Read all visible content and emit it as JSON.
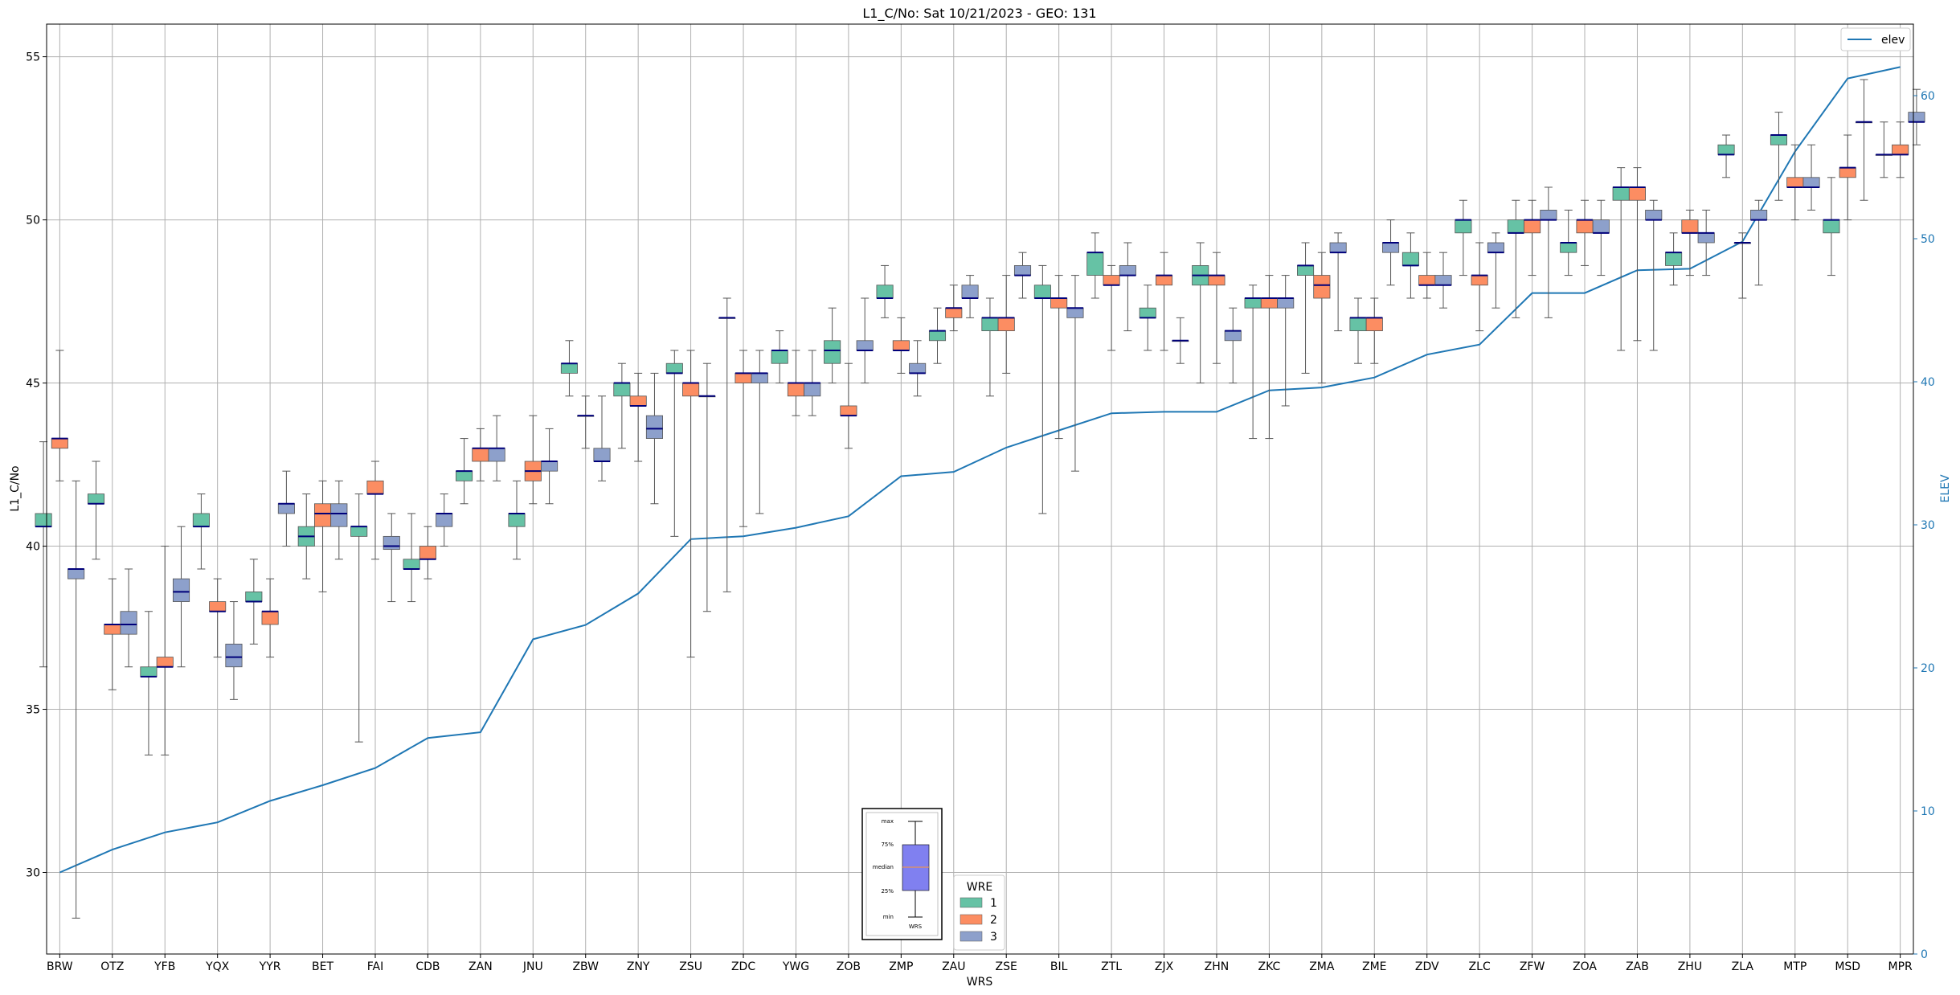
{
  "chart_data": {
    "type": "boxplot",
    "title": "L1_C/No: Sat 10/21/2023 - GEO: 131",
    "xlabel": "WRS",
    "ylabel": "L1_C/No",
    "y2label": "ELEV",
    "ylim": [
      27.5,
      56
    ],
    "y2lim": [
      0,
      65
    ],
    "yticks": [
      30,
      35,
      40,
      45,
      50,
      55
    ],
    "y2ticks": [
      0,
      10,
      20,
      30,
      40,
      50,
      60
    ],
    "grid": true,
    "legend_line": {
      "label": "elev",
      "color": "#1f77b4",
      "placement": "top-right"
    },
    "legend_wre": {
      "title": "WRE",
      "entries": [
        "1",
        "2",
        "3"
      ],
      "colors": [
        "#66c2a5",
        "#fc8d62",
        "#8da0cb"
      ],
      "placement": "bottom-center"
    },
    "key_labels": [
      "max",
      "75%",
      "median",
      "25%",
      "min",
      "WRS"
    ],
    "categories": [
      "BRW",
      "OTZ",
      "YFB",
      "YQX",
      "YYR",
      "BET",
      "FAI",
      "CDB",
      "ZAN",
      "JNU",
      "ZBW",
      "ZNY",
      "ZSU",
      "ZDC",
      "YWG",
      "ZOB",
      "ZMP",
      "ZAU",
      "ZSE",
      "BIL",
      "ZTL",
      "ZJX",
      "ZHN",
      "ZKC",
      "ZMA",
      "ZME",
      "ZDV",
      "ZLC",
      "ZFW",
      "ZOA",
      "ZAB",
      "ZHU",
      "ZLA",
      "MTP",
      "MSD",
      "MPR"
    ],
    "elev": [
      5.7,
      7.3,
      8.5,
      9.2,
      10.7,
      11.8,
      13.0,
      15.1,
      15.5,
      22.0,
      23.0,
      25.2,
      29.0,
      29.2,
      29.8,
      30.6,
      33.4,
      33.7,
      35.4,
      36.6,
      37.8,
      37.9,
      37.9,
      39.4,
      39.6,
      40.3,
      41.9,
      42.6,
      46.2,
      46.2,
      47.8,
      47.9,
      49.8,
      56.1,
      61.2,
      62.0
    ],
    "series": [
      {
        "name": "1",
        "boxes": [
          [
            36.3,
            40.6,
            40.6,
            41.0,
            43.2
          ],
          [
            39.6,
            41.3,
            41.3,
            41.6,
            42.6
          ],
          [
            33.6,
            36.0,
            36.0,
            36.3,
            38.0
          ],
          [
            39.3,
            40.6,
            40.6,
            41.0,
            41.6
          ],
          [
            37.0,
            38.3,
            38.3,
            38.6,
            39.6
          ],
          [
            39.0,
            40.0,
            40.3,
            40.6,
            41.6
          ],
          [
            34.0,
            40.3,
            40.6,
            40.6,
            41.6
          ],
          [
            38.3,
            39.3,
            39.3,
            39.6,
            41.0
          ],
          [
            41.3,
            42.0,
            42.3,
            42.3,
            43.3
          ],
          [
            39.6,
            40.6,
            41.0,
            41.0,
            42.0
          ],
          [
            44.6,
            45.3,
            45.6,
            45.6,
            46.3
          ],
          [
            43.0,
            44.6,
            45.0,
            45.0,
            45.6
          ],
          [
            40.3,
            45.3,
            45.3,
            45.6,
            46.0
          ],
          [
            38.6,
            47.0,
            47.0,
            47.0,
            47.6
          ],
          [
            45.0,
            45.6,
            46.0,
            46.0,
            46.6
          ],
          [
            45.0,
            45.6,
            46.0,
            46.3,
            47.3
          ],
          [
            47.0,
            47.6,
            47.6,
            48.0,
            48.6
          ],
          [
            45.6,
            46.3,
            46.6,
            46.6,
            47.3
          ],
          [
            44.6,
            46.6,
            47.0,
            47.0,
            47.6
          ],
          [
            41.0,
            47.6,
            47.6,
            48.0,
            48.6
          ],
          [
            47.6,
            48.3,
            49.0,
            49.0,
            49.6
          ],
          [
            46.0,
            47.0,
            47.0,
            47.3,
            48.0
          ],
          [
            45.0,
            48.0,
            48.3,
            48.6,
            49.3
          ],
          [
            43.3,
            47.3,
            47.6,
            47.6,
            48.0
          ],
          [
            45.3,
            48.3,
            48.6,
            48.6,
            49.3
          ],
          [
            45.6,
            46.6,
            47.0,
            47.0,
            47.6
          ],
          [
            47.6,
            48.6,
            48.6,
            49.0,
            49.6
          ],
          [
            48.3,
            49.6,
            50.0,
            50.0,
            50.6
          ],
          [
            47.0,
            49.6,
            49.6,
            50.0,
            50.6
          ],
          [
            48.3,
            49.0,
            49.3,
            49.3,
            50.3
          ],
          [
            46.0,
            50.6,
            51.0,
            51.0,
            51.6
          ],
          [
            48.0,
            48.6,
            49.0,
            49.0,
            49.6
          ],
          [
            51.3,
            52.0,
            52.0,
            52.3,
            52.6
          ],
          [
            50.6,
            52.3,
            52.6,
            52.6,
            53.3
          ],
          [
            48.3,
            49.6,
            50.0,
            50.0,
            51.3
          ],
          [
            51.3,
            52.0,
            52.0,
            52.0,
            53.0
          ]
        ]
      },
      {
        "name": "2",
        "boxes": [
          [
            42.0,
            43.0,
            43.3,
            43.3,
            46.0
          ],
          [
            35.6,
            37.3,
            37.6,
            37.6,
            39.0
          ],
          [
            33.6,
            36.3,
            36.3,
            36.6,
            40.0
          ],
          [
            36.6,
            38.0,
            38.0,
            38.3,
            39.0
          ],
          [
            36.6,
            37.6,
            38.0,
            38.0,
            39.0
          ],
          [
            38.6,
            40.6,
            41.0,
            41.3,
            42.0
          ],
          [
            39.6,
            41.6,
            41.6,
            42.0,
            42.6
          ],
          [
            39.0,
            39.6,
            39.6,
            40.0,
            40.6
          ],
          [
            42.0,
            42.6,
            43.0,
            43.0,
            43.6
          ],
          [
            41.3,
            42.0,
            42.3,
            42.6,
            44.0
          ],
          [
            43.0,
            44.0,
            44.0,
            44.0,
            44.6
          ],
          [
            42.6,
            44.3,
            44.3,
            44.6,
            45.3
          ],
          [
            36.6,
            44.6,
            45.0,
            45.0,
            46.0
          ],
          [
            40.6,
            45.0,
            45.3,
            45.3,
            46.0
          ],
          [
            44.0,
            44.6,
            45.0,
            45.0,
            46.0
          ],
          [
            43.0,
            44.0,
            44.0,
            44.3,
            45.6
          ],
          [
            45.3,
            46.0,
            46.0,
            46.3,
            47.0
          ],
          [
            46.6,
            47.0,
            47.3,
            47.3,
            48.0
          ],
          [
            45.3,
            46.6,
            47.0,
            47.0,
            48.3
          ],
          [
            43.3,
            47.3,
            47.6,
            47.6,
            48.3
          ],
          [
            46.0,
            48.0,
            48.0,
            48.3,
            48.6
          ],
          [
            46.0,
            48.0,
            48.3,
            48.3,
            49.0
          ],
          [
            45.6,
            48.0,
            48.3,
            48.3,
            49.0
          ],
          [
            43.3,
            47.3,
            47.6,
            47.6,
            48.3
          ],
          [
            45.0,
            47.6,
            48.0,
            48.3,
            49.0
          ],
          [
            45.6,
            46.6,
            47.0,
            47.0,
            47.6
          ],
          [
            47.6,
            48.0,
            48.0,
            48.3,
            49.0
          ],
          [
            46.6,
            48.0,
            48.3,
            48.3,
            49.3
          ],
          [
            48.3,
            49.6,
            50.0,
            50.0,
            50.6
          ],
          [
            48.6,
            49.6,
            50.0,
            50.0,
            50.6
          ],
          [
            46.3,
            50.6,
            51.0,
            51.0,
            51.6
          ],
          [
            48.3,
            49.6,
            49.6,
            50.0,
            50.3
          ],
          [
            47.6,
            49.3,
            49.3,
            49.3,
            49.6
          ],
          [
            50.0,
            51.0,
            51.0,
            51.3,
            52.3
          ],
          [
            50.0,
            51.3,
            51.6,
            51.6,
            52.6
          ],
          [
            51.3,
            52.0,
            52.0,
            52.3,
            53.0
          ]
        ]
      },
      {
        "name": "3",
        "boxes": [
          [
            28.6,
            39.0,
            39.3,
            39.3,
            42.0
          ],
          [
            36.3,
            37.3,
            37.6,
            38.0,
            39.3
          ],
          [
            36.3,
            38.3,
            38.6,
            39.0,
            40.6
          ],
          [
            35.3,
            36.3,
            36.6,
            37.0,
            38.3
          ],
          [
            40.0,
            41.0,
            41.3,
            41.3,
            42.3
          ],
          [
            39.6,
            40.6,
            41.0,
            41.3,
            42.0
          ],
          [
            38.3,
            39.9,
            40.0,
            40.3,
            41.0
          ],
          [
            40.0,
            40.6,
            41.0,
            41.0,
            41.6
          ],
          [
            42.0,
            42.6,
            43.0,
            43.0,
            44.0
          ],
          [
            41.3,
            42.3,
            42.6,
            42.6,
            43.6
          ],
          [
            42.0,
            42.6,
            42.6,
            43.0,
            44.6
          ],
          [
            41.3,
            43.3,
            43.6,
            44.0,
            45.3
          ],
          [
            38.0,
            44.6,
            44.6,
            44.6,
            45.6
          ],
          [
            41.0,
            45.0,
            45.3,
            45.3,
            46.0
          ],
          [
            44.0,
            44.6,
            45.0,
            45.0,
            46.0
          ],
          [
            45.0,
            46.0,
            46.0,
            46.3,
            47.6
          ],
          [
            44.6,
            45.3,
            45.3,
            45.6,
            46.3
          ],
          [
            47.0,
            47.6,
            47.6,
            48.0,
            48.3
          ],
          [
            47.6,
            48.3,
            48.3,
            48.6,
            49.0
          ],
          [
            42.3,
            47.0,
            47.3,
            47.3,
            48.3
          ],
          [
            46.6,
            48.3,
            48.3,
            48.6,
            49.3
          ],
          [
            45.6,
            46.3,
            46.3,
            46.3,
            47.0
          ],
          [
            45.0,
            46.3,
            46.6,
            46.6,
            47.3
          ],
          [
            44.3,
            47.3,
            47.6,
            47.6,
            48.3
          ],
          [
            46.6,
            49.0,
            49.0,
            49.3,
            49.6
          ],
          [
            48.0,
            49.0,
            49.3,
            49.3,
            50.0
          ],
          [
            47.3,
            48.0,
            48.0,
            48.3,
            49.0
          ],
          [
            47.3,
            49.0,
            49.0,
            49.3,
            49.6
          ],
          [
            47.0,
            50.0,
            50.0,
            50.3,
            51.0
          ],
          [
            48.3,
            49.6,
            49.6,
            50.0,
            50.6
          ],
          [
            46.0,
            50.0,
            50.0,
            50.3,
            50.6
          ],
          [
            48.3,
            49.3,
            49.6,
            49.6,
            50.3
          ],
          [
            48.0,
            50.0,
            50.0,
            50.3,
            50.6
          ],
          [
            50.3,
            51.0,
            51.0,
            51.3,
            52.3
          ],
          [
            50.6,
            53.0,
            53.0,
            53.0,
            54.3
          ],
          [
            52.3,
            53.0,
            53.0,
            53.3,
            54.0
          ]
        ]
      }
    ]
  }
}
